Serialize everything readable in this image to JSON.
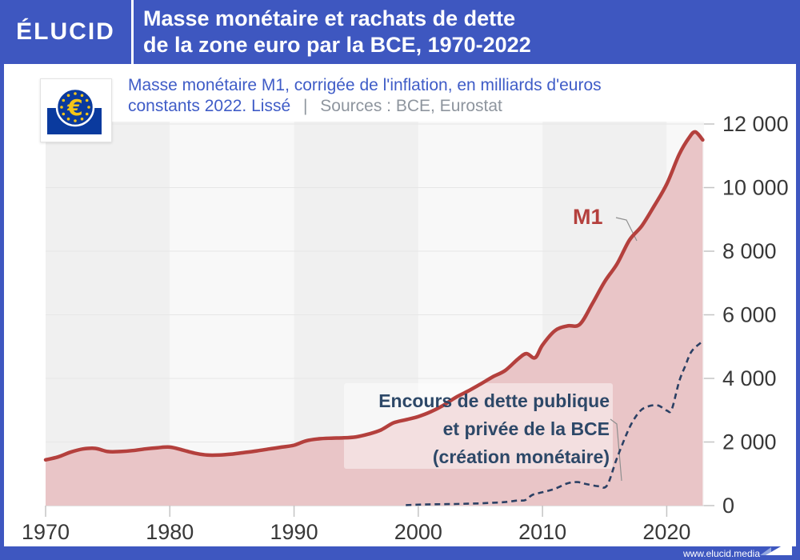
{
  "header": {
    "brand": "ÉLUCID",
    "title_line1": "Masse monétaire et rachats de dette",
    "title_line2": "de la zone euro par la BCE, 1970-2022"
  },
  "subtitle": {
    "line1": "Masse monétaire M1, corrigée de l'inflation, en milliards d'euros",
    "line2_highlight": "constants 2022. Lissé",
    "separator": "|",
    "sources": "Sources : BCE, Eurostat"
  },
  "footer": {
    "url": "www.elucid.media"
  },
  "icons": {
    "euro_symbol": "€",
    "ecb_logo": "ecb-eurotower-logo",
    "footer_arrow": "elucid-arrow-icon"
  },
  "colors": {
    "header_blue": "#3e57c0",
    "subtitle_blue": "#3f5cc7",
    "source_gray": "#8e959e",
    "m1_line": "#b4403d",
    "m1_fill": "#e9c5c7",
    "debt_line": "#2b4064",
    "annotation_text": "#2d4868",
    "tick_label": "#383838",
    "tick_mark": "#c4c4c4",
    "grid_line": "#e6e6e6",
    "band_dark": "#f0f0f0",
    "band_light": "#f8f8f8",
    "annotation_box": "rgba(255,255,255,0.45)",
    "connector_gray": "#8f8f8f",
    "ecb_blue": "#0a3a9e",
    "ecb_yellow": "#f5c518"
  },
  "chart_data": {
    "type": "area",
    "title": "Masse monétaire et rachats de dette de la zone euro par la BCE, 1970-2022",
    "ylabel": "Masse monétaire M1, en milliards d'euros constants 2022, lissé",
    "xlim": [
      1970,
      2023
    ],
    "ylim": [
      0,
      12000
    ],
    "x_ticks": [
      1970,
      1980,
      1990,
      2000,
      2010,
      2020
    ],
    "y_ticks": [
      0,
      2000,
      4000,
      6000,
      8000,
      10000,
      12000
    ],
    "y_tick_labels": [
      "0",
      "2 000",
      "4 000",
      "6 000",
      "8 000",
      "10 000",
      "12 000"
    ],
    "grid": "horizontal",
    "decade_bands": true,
    "legend_position": "inline-annotations",
    "series": [
      {
        "name": "M1",
        "style": "area",
        "points": [
          [
            1970,
            1440
          ],
          [
            1971,
            1530
          ],
          [
            1972,
            1680
          ],
          [
            1973,
            1780
          ],
          [
            1974,
            1800
          ],
          [
            1975,
            1700
          ],
          [
            1976,
            1700
          ],
          [
            1977,
            1730
          ],
          [
            1978,
            1780
          ],
          [
            1979,
            1820
          ],
          [
            1980,
            1840
          ],
          [
            1981,
            1750
          ],
          [
            1982,
            1650
          ],
          [
            1983,
            1590
          ],
          [
            1984,
            1590
          ],
          [
            1985,
            1620
          ],
          [
            1986,
            1670
          ],
          [
            1987,
            1720
          ],
          [
            1988,
            1780
          ],
          [
            1989,
            1840
          ],
          [
            1990,
            1900
          ],
          [
            1991,
            2040
          ],
          [
            1992,
            2100
          ],
          [
            1993,
            2120
          ],
          [
            1994,
            2130
          ],
          [
            1995,
            2160
          ],
          [
            1996,
            2250
          ],
          [
            1997,
            2380
          ],
          [
            1998,
            2600
          ],
          [
            1999,
            2700
          ],
          [
            2000,
            2800
          ],
          [
            2001,
            2950
          ],
          [
            2002,
            3150
          ],
          [
            2003,
            3400
          ],
          [
            2004,
            3600
          ],
          [
            2005,
            3820
          ],
          [
            2006,
            4050
          ],
          [
            2007,
            4250
          ],
          [
            2008,
            4600
          ],
          [
            2008.7,
            4780
          ],
          [
            2009.4,
            4650
          ],
          [
            2010,
            5050
          ],
          [
            2011,
            5500
          ],
          [
            2012,
            5650
          ],
          [
            2013,
            5700
          ],
          [
            2014,
            6340
          ],
          [
            2015,
            7040
          ],
          [
            2016,
            7600
          ],
          [
            2017,
            8350
          ],
          [
            2018,
            8800
          ],
          [
            2019,
            9430
          ],
          [
            2020,
            10110
          ],
          [
            2021,
            11040
          ],
          [
            2021.8,
            11570
          ],
          [
            2022.3,
            11750
          ],
          [
            2022.9,
            11500
          ]
        ]
      },
      {
        "name": "Encours de dette publique et privée de la BCE (création monétaire)",
        "style": "dashed",
        "points": [
          [
            1999,
            15
          ],
          [
            2000,
            30
          ],
          [
            2001,
            40
          ],
          [
            2002,
            45
          ],
          [
            2003,
            50
          ],
          [
            2004,
            60
          ],
          [
            2005,
            70
          ],
          [
            2006,
            90
          ],
          [
            2007,
            110
          ],
          [
            2008,
            160
          ],
          [
            2008.6,
            170
          ],
          [
            2009.2,
            340
          ],
          [
            2010,
            420
          ],
          [
            2011,
            530
          ],
          [
            2012,
            700
          ],
          [
            2012.8,
            740
          ],
          [
            2013.5,
            680
          ],
          [
            2014.5,
            610
          ],
          [
            2015.2,
            640
          ],
          [
            2016,
            1500
          ],
          [
            2017,
            2450
          ],
          [
            2017.8,
            2950
          ],
          [
            2018.5,
            3120
          ],
          [
            2019.3,
            3150
          ],
          [
            2020,
            2990
          ],
          [
            2020.4,
            3020
          ],
          [
            2021,
            3900
          ],
          [
            2021.5,
            4400
          ],
          [
            2022,
            4850
          ],
          [
            2022.8,
            5140
          ]
        ]
      }
    ],
    "annotations": {
      "m1_label": "M1",
      "debt_lines": [
        "Encours de dette publique",
        "et privée de la BCE",
        "(création monétaire)"
      ]
    }
  }
}
